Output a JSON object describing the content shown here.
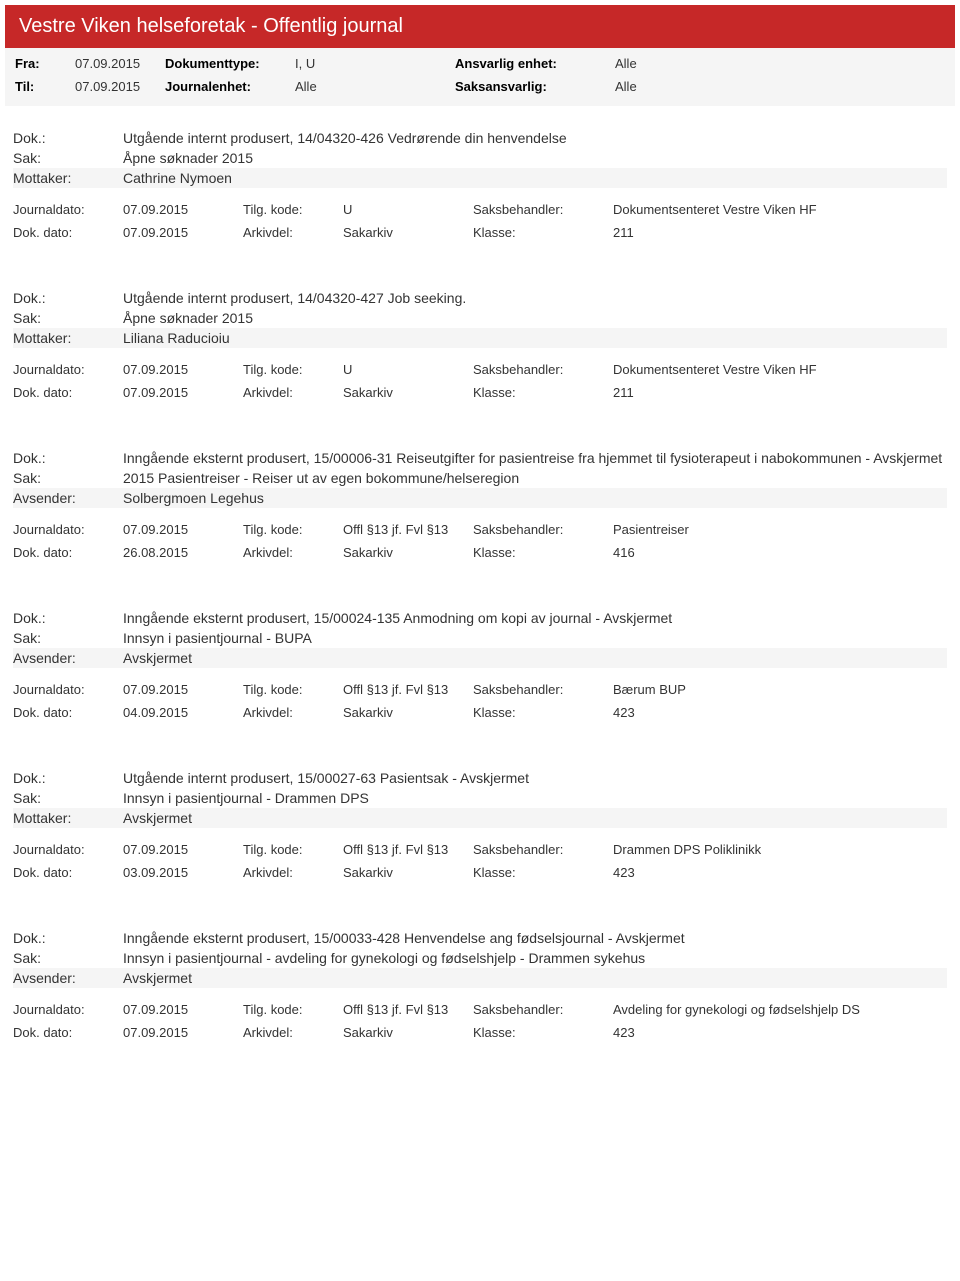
{
  "header": {
    "title": "Vestre Viken helseforetak - Offentlig journal"
  },
  "filter": {
    "fra_label": "Fra:",
    "fra_value": "07.09.2015",
    "til_label": "Til:",
    "til_value": "07.09.2015",
    "doktype_label": "Dokumenttype:",
    "doktype_value": "I, U",
    "journalenhet_label": "Journalenhet:",
    "journalenhet_value": "Alle",
    "ansvarlig_label": "Ansvarlig enhet:",
    "ansvarlig_value": "Alle",
    "saksansvarlig_label": "Saksansvarlig:",
    "saksansvarlig_value": "Alle"
  },
  "labels": {
    "dok": "Dok.:",
    "sak": "Sak:",
    "mottaker": "Mottaker:",
    "avsender": "Avsender:",
    "journaldato": "Journaldato:",
    "dokdato": "Dok. dato:",
    "tilgkode": "Tilg. kode:",
    "arkivdel": "Arkivdel:",
    "saksbeh": "Saksbehandler:",
    "klasse": "Klasse:"
  },
  "entries": [
    {
      "dok": "Utgående internt produsert, 14/04320-426 Vedrørende din henvendelse",
      "sak": "Åpne søknader 2015",
      "party_label_key": "mottaker",
      "party": "Cathrine Nymoen",
      "journaldato": "07.09.2015",
      "tilgkode": "U",
      "saksbeh": "Dokumentsenteret Vestre Viken HF",
      "dokdato": "07.09.2015",
      "arkivdel": "Sakarkiv",
      "klasse": "211"
    },
    {
      "dok": "Utgående internt produsert, 14/04320-427 Job seeking.",
      "sak": "Åpne søknader 2015",
      "party_label_key": "mottaker",
      "party": "Liliana Raducioiu",
      "journaldato": "07.09.2015",
      "tilgkode": "U",
      "saksbeh": "Dokumentsenteret Vestre Viken HF",
      "dokdato": "07.09.2015",
      "arkivdel": "Sakarkiv",
      "klasse": "211"
    },
    {
      "dok": "Inngående eksternt produsert, 15/00006-31 Reiseutgifter for pasientreise fra hjemmet til fysioterapeut i nabokommunen - Avskjermet",
      "sak": "2015 Pasientreiser - Reiser ut av egen bokommune/helseregion",
      "party_label_key": "avsender",
      "party": "Solbergmoen Legehus",
      "journaldato": "07.09.2015",
      "tilgkode": "Offl §13 jf. Fvl §13",
      "saksbeh": "Pasientreiser",
      "dokdato": "26.08.2015",
      "arkivdel": "Sakarkiv",
      "klasse": "416"
    },
    {
      "dok": "Inngående eksternt produsert, 15/00024-135 Anmodning om kopi av journal - Avskjermet",
      "sak": "Innsyn i pasientjournal - BUPA",
      "party_label_key": "avsender",
      "party": "Avskjermet",
      "journaldato": "07.09.2015",
      "tilgkode": "Offl §13 jf. Fvl §13",
      "saksbeh": "Bærum BUP",
      "dokdato": "04.09.2015",
      "arkivdel": "Sakarkiv",
      "klasse": "423"
    },
    {
      "dok": "Utgående internt produsert, 15/00027-63 Pasientsak - Avskjermet",
      "sak": "Innsyn i pasientjournal - Drammen DPS",
      "party_label_key": "mottaker",
      "party": "Avskjermet",
      "journaldato": "07.09.2015",
      "tilgkode": "Offl §13 jf. Fvl §13",
      "saksbeh": "Drammen DPS Poliklinikk",
      "dokdato": "03.09.2015",
      "arkivdel": "Sakarkiv",
      "klasse": "423"
    },
    {
      "dok": "Inngående eksternt produsert, 15/00033-428 Henvendelse ang fødselsjournal - Avskjermet",
      "sak": "Innsyn i pasientjournal - avdeling for gynekologi og fødselshjelp - Drammen sykehus",
      "party_label_key": "avsender",
      "party": "Avskjermet",
      "journaldato": "07.09.2015",
      "tilgkode": "Offl §13 jf. Fvl §13",
      "saksbeh": "Avdeling for gynekologi og fødselshjelp DS",
      "dokdato": "07.09.2015",
      "arkivdel": "Sakarkiv",
      "klasse": "423"
    }
  ],
  "colors": {
    "header_bg": "#c62828",
    "header_text": "#ffffff",
    "filter_bg": "#f5f5f5",
    "alt_bg": "#f5f5f5",
    "text": "#333333"
  }
}
